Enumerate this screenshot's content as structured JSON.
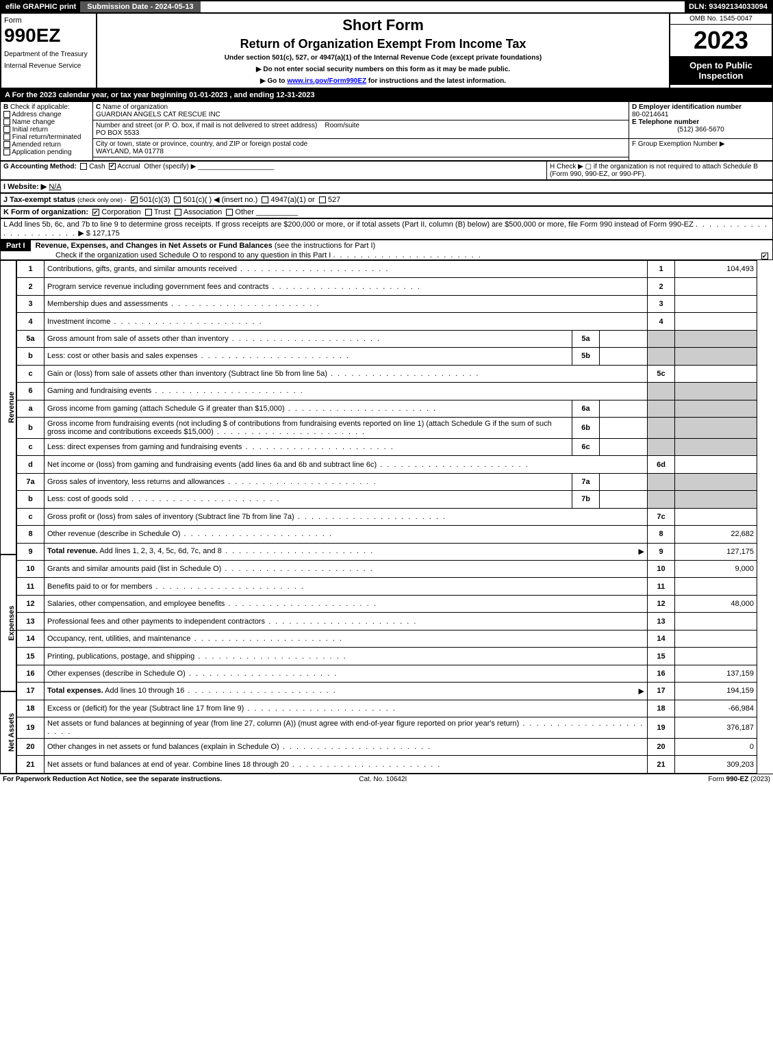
{
  "header": {
    "efile": "efile GRAPHIC print",
    "submission": "Submission Date - 2024-05-13",
    "dln": "DLN: 93492134033094"
  },
  "form": {
    "form_word": "Form",
    "number": "990EZ",
    "dept1": "Department of the Treasury",
    "dept2": "Internal Revenue Service",
    "short_form": "Short Form",
    "title": "Return of Organization Exempt From Income Tax",
    "subtitle": "Under section 501(c), 527, or 4947(a)(1) of the Internal Revenue Code (except private foundations)",
    "instr1": "▶ Do not enter social security numbers on this form as it may be made public.",
    "instr2_pre": "▶ Go to ",
    "instr2_link": "www.irs.gov/Form990EZ",
    "instr2_post": " for instructions and the latest information.",
    "omb": "OMB No. 1545-0047",
    "year": "2023",
    "open": "Open to Public Inspection"
  },
  "secA": "A  For the 2023 calendar year, or tax year beginning 01-01-2023 , and ending 12-31-2023",
  "secB": {
    "label": "B",
    "check": "Check if applicable:",
    "addr": "Address change",
    "name": "Name change",
    "initial": "Initial return",
    "final": "Final return/terminated",
    "amended": "Amended return",
    "pending": "Application pending"
  },
  "secC": {
    "label": "C",
    "name_label": "Name of organization",
    "name": "GUARDIAN ANGELS CAT RESCUE INC",
    "street_label": "Number and street (or P. O. box, if mail is not delivered to street address)",
    "street": "PO BOX 5533",
    "room_label": "Room/suite",
    "city_label": "City or town, state or province, country, and ZIP or foreign postal code",
    "city": "WAYLAND, MA  01778"
  },
  "secD": {
    "label": "D Employer identification number",
    "value": "80-0214641"
  },
  "secE": {
    "label": "E Telephone number",
    "value": "(512) 366-5670"
  },
  "secF": {
    "label": "F Group Exemption Number  ▶"
  },
  "secG": {
    "label": "G Accounting Method:",
    "cash": "Cash",
    "accrual": "Accrual",
    "other": "Other (specify) ▶"
  },
  "secH": {
    "text": "H   Check ▶  ▢  if the organization is not required to attach Schedule B (Form 990, 990-EZ, or 990-PF)."
  },
  "secI": {
    "label": "I Website: ▶",
    "value": "N/A"
  },
  "secJ": {
    "label": "J Tax-exempt status",
    "sub": "(check only one) -",
    "opt1": "501(c)(3)",
    "opt2": "501(c)(  ) ◀ (insert no.)",
    "opt3": "4947(a)(1) or",
    "opt4": "527"
  },
  "secK": {
    "label": "K Form of organization:",
    "corp": "Corporation",
    "trust": "Trust",
    "assoc": "Association",
    "other": "Other"
  },
  "secL": {
    "text": "L Add lines 5b, 6c, and 7b to line 9 to determine gross receipts. If gross receipts are $200,000 or more, or if total assets (Part II, column (B) below) are $500,000 or more, file Form 990 instead of Form 990-EZ",
    "arrow": "▶ $",
    "value": "127,175"
  },
  "part1": {
    "label": "Part I",
    "title": "Revenue, Expenses, and Changes in Net Assets or Fund Balances",
    "paren": "(see the instructions for Part I)",
    "check_text": "Check if the organization used Schedule O to respond to any question in this Part I"
  },
  "side": {
    "revenue": "Revenue",
    "expenses": "Expenses",
    "netassets": "Net Assets"
  },
  "lines": [
    {
      "n": "1",
      "desc": "Contributions, gifts, grants, and similar amounts received",
      "ln": "1",
      "amt": "104,493"
    },
    {
      "n": "2",
      "desc": "Program service revenue including government fees and contracts",
      "ln": "2",
      "amt": ""
    },
    {
      "n": "3",
      "desc": "Membership dues and assessments",
      "ln": "3",
      "amt": ""
    },
    {
      "n": "4",
      "desc": "Investment income",
      "ln": "4",
      "amt": ""
    },
    {
      "n": "5a",
      "desc": "Gross amount from sale of assets other than inventory",
      "mid": "5a",
      "midamt": ""
    },
    {
      "n": "b",
      "desc": "Less: cost or other basis and sales expenses",
      "mid": "5b",
      "midamt": ""
    },
    {
      "n": "c",
      "desc": "Gain or (loss) from sale of assets other than inventory (Subtract line 5b from line 5a)",
      "ln": "5c",
      "amt": ""
    },
    {
      "n": "6",
      "desc": "Gaming and fundraising events"
    },
    {
      "n": "a",
      "desc": "Gross income from gaming (attach Schedule G if greater than $15,000)",
      "mid": "6a",
      "midamt": ""
    },
    {
      "n": "b",
      "desc": "Gross income from fundraising events (not including $            of contributions from fundraising events reported on line 1) (attach Schedule G if the sum of such gross income and contributions exceeds $15,000)",
      "mid": "6b",
      "midamt": ""
    },
    {
      "n": "c",
      "desc": "Less: direct expenses from gaming and fundraising events",
      "mid": "6c",
      "midamt": ""
    },
    {
      "n": "d",
      "desc": "Net income or (loss) from gaming and fundraising events (add lines 6a and 6b and subtract line 6c)",
      "ln": "6d",
      "amt": ""
    },
    {
      "n": "7a",
      "desc": "Gross sales of inventory, less returns and allowances",
      "mid": "7a",
      "midamt": ""
    },
    {
      "n": "b",
      "desc": "Less: cost of goods sold",
      "mid": "7b",
      "midamt": ""
    },
    {
      "n": "c",
      "desc": "Gross profit or (loss) from sales of inventory (Subtract line 7b from line 7a)",
      "ln": "7c",
      "amt": ""
    },
    {
      "n": "8",
      "desc": "Other revenue (describe in Schedule O)",
      "ln": "8",
      "amt": "22,682"
    },
    {
      "n": "9",
      "desc": "Total revenue. Add lines 1, 2, 3, 4, 5c, 6d, 7c, and 8",
      "ln": "9",
      "amt": "127,175",
      "bold": true,
      "arrow": true
    },
    {
      "n": "10",
      "desc": "Grants and similar amounts paid (list in Schedule O)",
      "ln": "10",
      "amt": "9,000"
    },
    {
      "n": "11",
      "desc": "Benefits paid to or for members",
      "ln": "11",
      "amt": ""
    },
    {
      "n": "12",
      "desc": "Salaries, other compensation, and employee benefits",
      "ln": "12",
      "amt": "48,000"
    },
    {
      "n": "13",
      "desc": "Professional fees and other payments to independent contractors",
      "ln": "13",
      "amt": ""
    },
    {
      "n": "14",
      "desc": "Occupancy, rent, utilities, and maintenance",
      "ln": "14",
      "amt": ""
    },
    {
      "n": "15",
      "desc": "Printing, publications, postage, and shipping",
      "ln": "15",
      "amt": ""
    },
    {
      "n": "16",
      "desc": "Other expenses (describe in Schedule O)",
      "ln": "16",
      "amt": "137,159"
    },
    {
      "n": "17",
      "desc": "Total expenses. Add lines 10 through 16",
      "ln": "17",
      "amt": "194,159",
      "bold": true,
      "arrow": true
    },
    {
      "n": "18",
      "desc": "Excess or (deficit) for the year (Subtract line 17 from line 9)",
      "ln": "18",
      "amt": "-66,984"
    },
    {
      "n": "19",
      "desc": "Net assets or fund balances at beginning of year (from line 27, column (A)) (must agree with end-of-year figure reported on prior year's return)",
      "ln": "19",
      "amt": "376,187"
    },
    {
      "n": "20",
      "desc": "Other changes in net assets or fund balances (explain in Schedule O)",
      "ln": "20",
      "amt": "0"
    },
    {
      "n": "21",
      "desc": "Net assets or fund balances at end of year. Combine lines 18 through 20",
      "ln": "21",
      "amt": "309,203"
    }
  ],
  "footer": {
    "left": "For Paperwork Reduction Act Notice, see the separate instructions.",
    "mid": "Cat. No. 10642I",
    "right_pre": "Form ",
    "right_bold": "990-EZ",
    "right_post": " (2023)"
  }
}
